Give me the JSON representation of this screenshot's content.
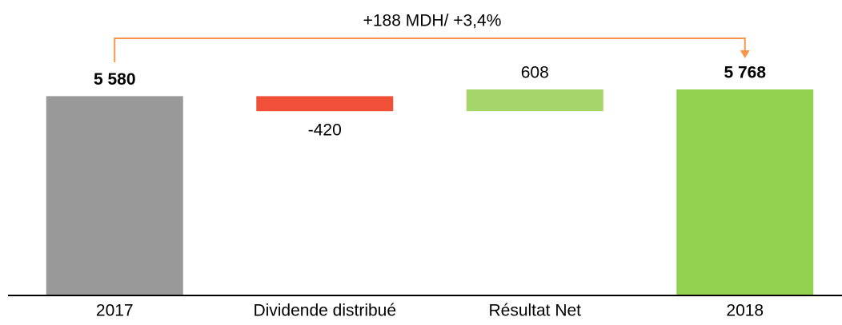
{
  "chart_data": {
    "type": "waterfall",
    "annotation": "+188 MDH/ +3,4%",
    "annotation_color": "#f79646",
    "categories": [
      "2017",
      "Dividende distribué",
      "Résultat  Net",
      "2018"
    ],
    "values": [
      5580,
      -420,
      608,
      5768
    ],
    "value_labels": [
      "5 580",
      "-420",
      "608",
      "5 768"
    ],
    "colors": [
      "#999999",
      "#f05038",
      "#a6d66a",
      "#92d050"
    ]
  }
}
